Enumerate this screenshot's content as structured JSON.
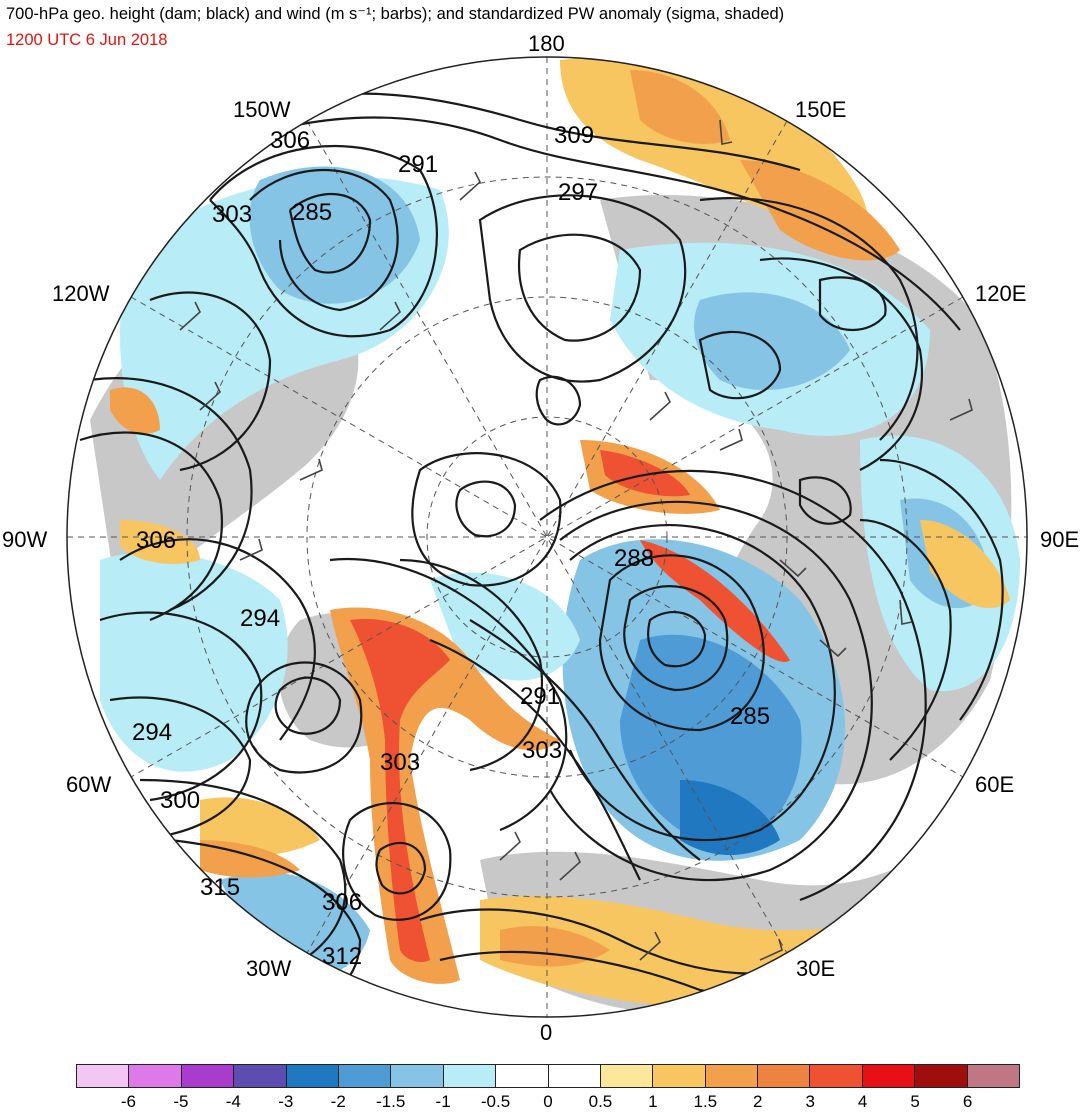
{
  "header": {
    "title": "700-hPa geo. height (dam; black) and wind (m s⁻¹; barbs); and standardized PW anomaly (sigma, shaded)",
    "datetime": "1200 UTC 6 Jun 2018",
    "datetime_color": "#e8110f"
  },
  "longitude_labels": {
    "top": "180",
    "bottom": "0",
    "left": "90W",
    "right": "90E",
    "upper_left": "150W",
    "upper_right": "150E",
    "mid_left": "120W",
    "mid_right": "120E",
    "lower_left": "60W",
    "lower_right": "60E",
    "bottom_left": "30W",
    "bottom_right": "30E"
  },
  "contour_labels": [
    "306",
    "291",
    "297",
    "309",
    "303",
    "285",
    "306",
    "288",
    "294",
    "291",
    "303",
    "303",
    "285",
    "294",
    "300",
    "315",
    "306",
    "312"
  ],
  "colorbar": {
    "colors": [
      "#f4c6f4",
      "#dd7ae8",
      "#a93ccc",
      "#5e4db0",
      "#1f78c0",
      "#4f9bd6",
      "#86c4e6",
      "#b8ecf7",
      "#ffffff",
      "#ffffff",
      "#fde79b",
      "#f8c661",
      "#f2a04c",
      "#ee8240",
      "#ee5232",
      "#e71014",
      "#a00d0d",
      "#c07784"
    ],
    "ticks": [
      "-6",
      "-5",
      "-4",
      "-3",
      "-2",
      "-1.5",
      "-1",
      "-0.5",
      "0",
      "0.5",
      "1",
      "1.5",
      "2",
      "3",
      "4",
      "5",
      "6"
    ]
  },
  "map_colors": {
    "land": "#c8c8c8",
    "ocean": "#ffffff",
    "neg_light": "#b8ecf7",
    "neg_mid": "#86c4e6",
    "neg_deep": "#4f9bd6",
    "neg_strong": "#1f78c0",
    "pos_light": "#fde79b",
    "pos_mid": "#f8c661",
    "pos_orange": "#f2a04c",
    "pos_deep": "#ee5232",
    "pos_red": "#e71014"
  }
}
